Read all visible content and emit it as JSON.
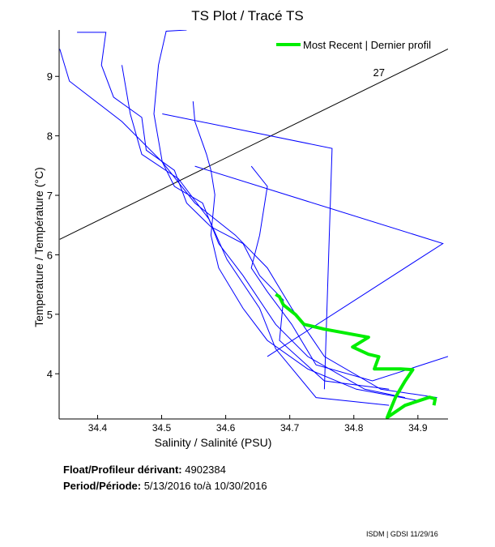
{
  "chart_data": {
    "type": "line",
    "title": "TS Plot / Tracé TS",
    "xlabel": "Salinity / Salinité (PSU)",
    "ylabel": "Temperature / Température (°C)",
    "xlim": [
      34.34,
      34.947
    ],
    "ylim": [
      3.24,
      9.78
    ],
    "xticks": [
      "34.4",
      "34.5",
      "34.6",
      "34.7",
      "34.8",
      "34.9"
    ],
    "yticks": [
      "4",
      "5",
      "6",
      "7",
      "8",
      "9"
    ],
    "grid": false,
    "legend": {
      "position": "top-right",
      "label": "Most Recent | Dernier profil"
    },
    "colors": {
      "profiles": "#0000ff",
      "most_recent": "#00ee00",
      "isopycnal": "#000000"
    },
    "isopycnal": {
      "label": "27",
      "points": [
        [
          34.341,
          6.26
        ],
        [
          34.947,
          9.46
        ]
      ],
      "label_at": [
        34.83,
        9.0
      ]
    },
    "profiles": [
      [
        [
          34.341,
          9.46
        ],
        [
          34.356,
          8.92
        ],
        [
          34.438,
          8.24
        ],
        [
          34.501,
          7.56
        ],
        [
          34.552,
          6.87
        ],
        [
          34.615,
          6.33
        ],
        [
          34.665,
          5.78
        ],
        [
          34.703,
          5.1
        ],
        [
          34.754,
          4.29
        ],
        [
          34.842,
          3.74
        ],
        [
          34.93,
          3.6
        ]
      ],
      [
        [
          34.539,
          9.78
        ],
        [
          34.507,
          9.76
        ],
        [
          34.495,
          9.19
        ],
        [
          34.488,
          8.37
        ],
        [
          34.501,
          7.56
        ],
        [
          34.52,
          7.15
        ],
        [
          34.564,
          6.87
        ],
        [
          34.589,
          6.19
        ],
        [
          34.627,
          5.65
        ],
        [
          34.678,
          4.83
        ],
        [
          34.728,
          4.29
        ],
        [
          34.817,
          3.74
        ],
        [
          34.88,
          3.6
        ]
      ],
      [
        [
          34.501,
          8.37
        ],
        [
          34.766,
          7.79
        ],
        [
          34.754,
          3.74
        ]
      ],
      [
        [
          34.552,
          7.49
        ],
        [
          34.939,
          6.19
        ],
        [
          34.665,
          4.29
        ]
      ],
      [
        [
          34.368,
          9.74
        ],
        [
          34.413,
          9.74
        ],
        [
          34.406,
          9.19
        ],
        [
          34.425,
          8.65
        ],
        [
          34.469,
          8.31
        ],
        [
          34.476,
          7.76
        ],
        [
          34.52,
          7.42
        ],
        [
          34.539,
          6.87
        ],
        [
          34.577,
          6.47
        ],
        [
          34.627,
          6.19
        ],
        [
          34.653,
          5.65
        ],
        [
          34.69,
          5.24
        ],
        [
          34.684,
          4.56
        ],
        [
          34.754,
          3.88
        ],
        [
          34.855,
          3.74
        ]
      ],
      [
        [
          34.549,
          8.58
        ],
        [
          34.552,
          8.24
        ],
        [
          34.57,
          7.69
        ],
        [
          34.577,
          7.42
        ],
        [
          34.583,
          7.01
        ],
        [
          34.577,
          6.33
        ],
        [
          34.589,
          5.78
        ],
        [
          34.627,
          5.1
        ],
        [
          34.665,
          4.56
        ],
        [
          34.728,
          4.08
        ],
        [
          34.804,
          3.74
        ],
        [
          34.905,
          3.54
        ]
      ],
      [
        [
          34.64,
          7.49
        ],
        [
          34.665,
          7.15
        ],
        [
          34.653,
          6.33
        ],
        [
          34.64,
          5.78
        ],
        [
          34.665,
          5.38
        ],
        [
          34.703,
          4.83
        ],
        [
          34.741,
          4.15
        ],
        [
          34.829,
          3.88
        ],
        [
          34.947,
          4.29
        ]
      ],
      [
        [
          34.438,
          9.19
        ],
        [
          34.451,
          8.37
        ],
        [
          34.469,
          7.69
        ],
        [
          34.526,
          7.28
        ],
        [
          34.574,
          6.6
        ],
        [
          34.602,
          5.92
        ],
        [
          34.653,
          5.1
        ],
        [
          34.678,
          4.42
        ],
        [
          34.741,
          3.6
        ],
        [
          34.855,
          3.47
        ]
      ]
    ],
    "most_recent": [
      [
        34.678,
        5.335
      ],
      [
        34.684,
        5.294
      ],
      [
        34.69,
        5.158
      ],
      [
        34.709,
        4.995
      ],
      [
        34.722,
        4.831
      ],
      [
        34.754,
        4.749
      ],
      [
        34.823,
        4.613
      ],
      [
        34.798,
        4.45
      ],
      [
        34.823,
        4.327
      ],
      [
        34.839,
        4.286
      ],
      [
        34.832,
        4.082
      ],
      [
        34.873,
        4.082
      ],
      [
        34.892,
        4.068
      ],
      [
        34.88,
        3.877
      ],
      [
        34.865,
        3.605
      ],
      [
        34.852,
        3.264
      ],
      [
        34.88,
        3.469
      ],
      [
        34.918,
        3.605
      ],
      [
        34.927,
        3.578
      ],
      [
        34.925,
        3.469
      ]
    ]
  },
  "info": {
    "float_label": "Float/Profileur dérivant:",
    "float_id": "4902384",
    "period_label": "Period/Période:",
    "period_start": "5/13/2016",
    "period_sep": "to/à",
    "period_end": "10/30/2016"
  },
  "footer": "ISDM | GDSI  11/29/16"
}
